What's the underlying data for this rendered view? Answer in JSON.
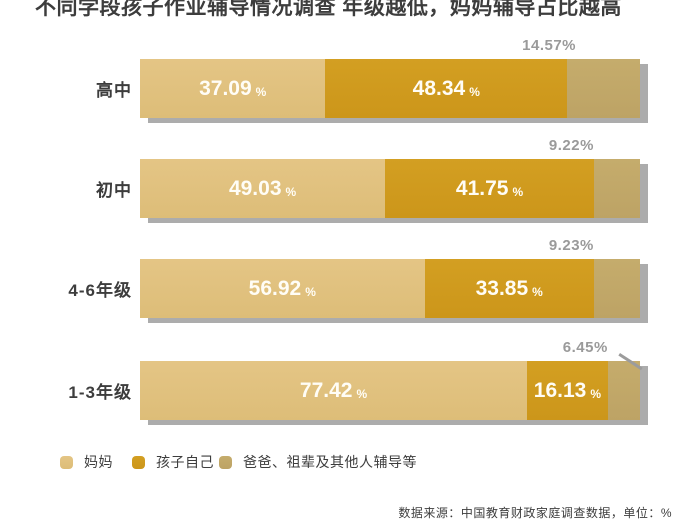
{
  "title": "不同学段孩子作业辅导情况调查  年级越低，妈妈辅导占比越高",
  "chart_data": {
    "type": "bar",
    "orientation": "horizontal",
    "stacked": true,
    "unit": "%",
    "xlim": [
      0,
      100
    ],
    "grid": false,
    "legend_position": "bottom",
    "categories": [
      "高中",
      "初中",
      "4-6年级",
      "1-3年级"
    ],
    "series": [
      {
        "name": "妈妈",
        "color": "#e4c585",
        "color_dark": "#ddbd78",
        "values": [
          37.09,
          49.03,
          56.92,
          77.42
        ],
        "label_style": "white-inside"
      },
      {
        "name": "孩子自己",
        "color": "#d39f22",
        "color_dark": "#cc961a",
        "values": [
          48.34,
          41.75,
          33.85,
          16.13
        ],
        "label_style": "white-inside"
      },
      {
        "name": "爸爸、祖辈及其他人辅导等",
        "color": "#c5ac6c",
        "color_dark": "#bda365",
        "values": [
          14.57,
          9.22,
          9.23,
          6.45
        ],
        "label_style": "gray-above"
      }
    ],
    "annotations": {
      "remainder_labels": [
        "14.57%",
        "9.22%",
        "9.23%",
        "6.45%"
      ],
      "callout_leader_on_row": 3
    }
  },
  "legend": {
    "swatch_shape": "rounded-square",
    "items": [
      "妈妈",
      "孩子自己",
      "爸爸、祖辈及其他人辅导等"
    ]
  },
  "footer": {
    "source": "数据来源：中国教育财政家庭调查数据，单位：%"
  },
  "colors": {
    "background": "#ffffff",
    "title_text": "#3d3d3d",
    "bar_value_text": "#fffdf6",
    "remainder_text": "#9a9a9a",
    "bar_shadow": "#9e9e9e"
  }
}
